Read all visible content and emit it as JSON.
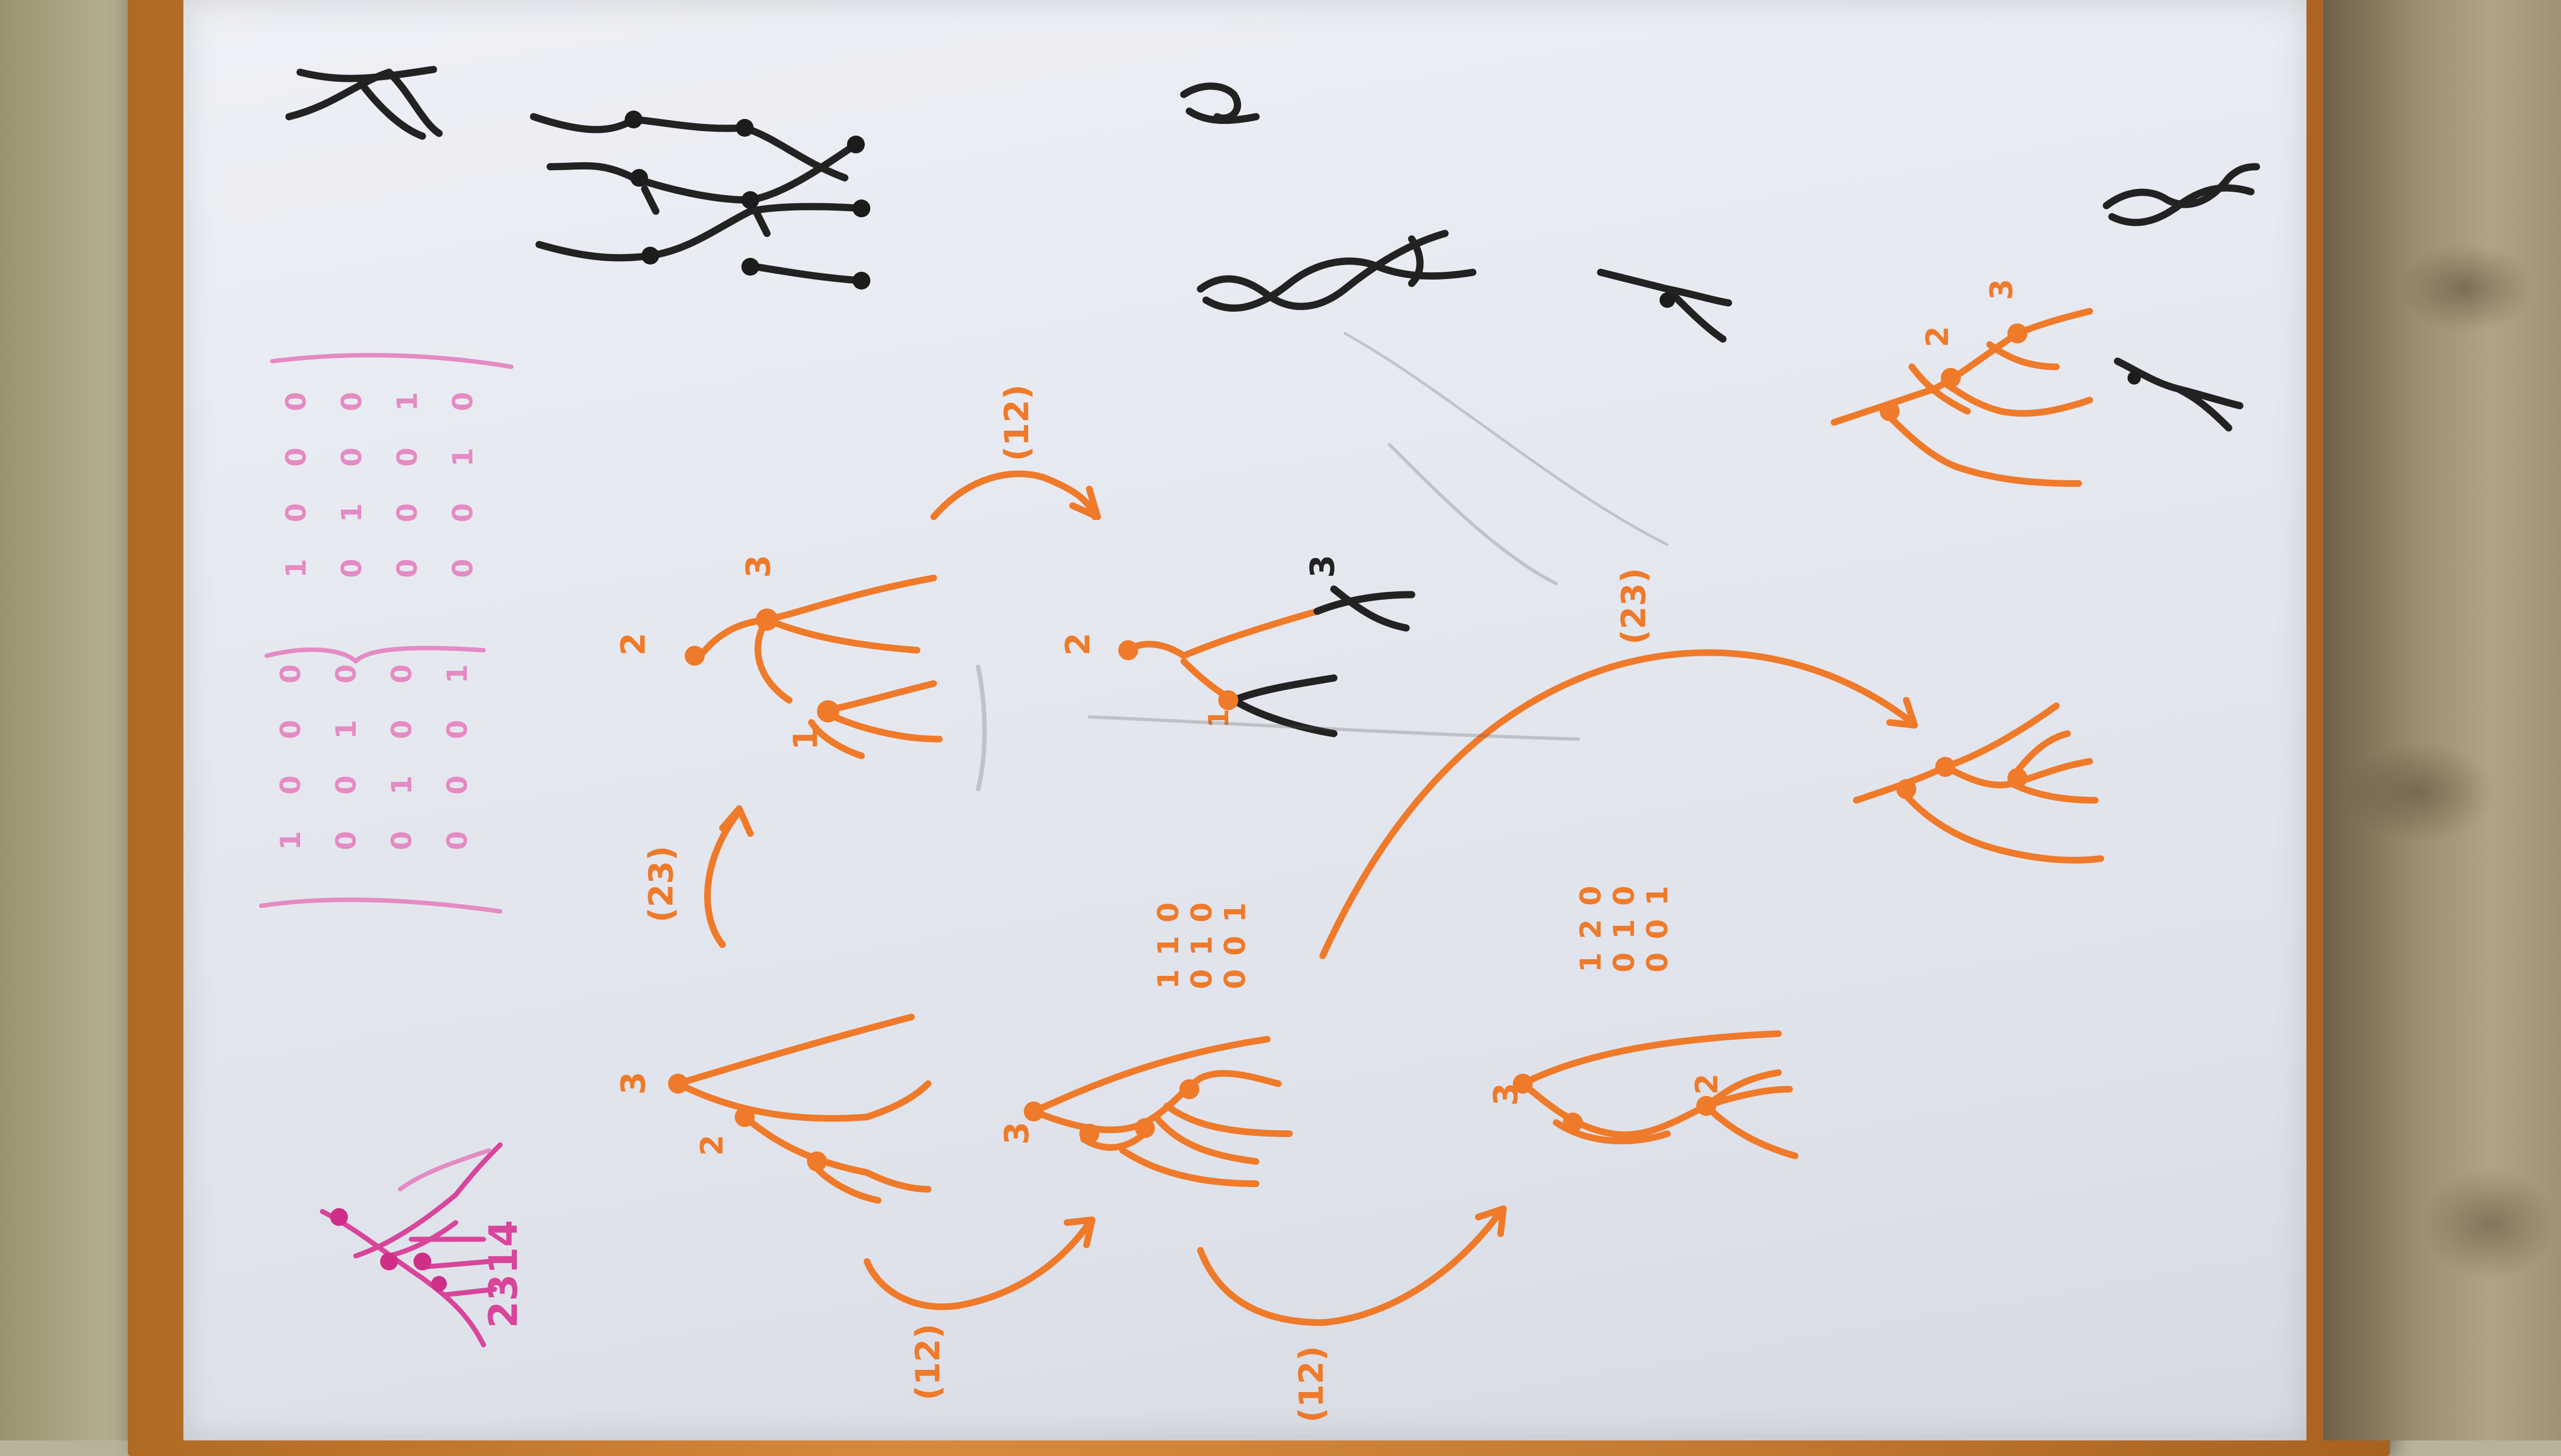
{
  "colors": {
    "board": "#e6e8f0",
    "frame": "#c27a32",
    "orange_marker": "#ef7a2a",
    "magenta_marker": "#d8459a",
    "black_marker": "#222222"
  },
  "labels": {
    "perm_12_top": "(12)",
    "perm_23_left": "(23)",
    "perm_12_bottom_left": "(12)",
    "perm_12_bottom_mid": "(12)",
    "perm_23_right": "(23)",
    "num_1": "1",
    "num_2": "2",
    "num_3": "3",
    "sequence_2314": "2314"
  },
  "matrix_left": {
    "rows": [
      [
        "1",
        "0",
        "0",
        "0"
      ],
      [
        "0",
        "0",
        "1",
        "0"
      ],
      [
        "0",
        "1",
        "0",
        "0"
      ],
      [
        "0",
        "0",
        "0",
        "1"
      ]
    ]
  },
  "matrix_right": {
    "rows": [
      [
        "1",
        "0",
        "0",
        "0"
      ],
      [
        "0",
        "1",
        "0",
        "0"
      ],
      [
        "0",
        "0",
        "0",
        "1"
      ],
      [
        "0",
        "0",
        "1",
        "0"
      ]
    ]
  },
  "matrix_small_a": {
    "rows": [
      [
        "1",
        "1",
        "0"
      ],
      [
        "0",
        "1",
        "0"
      ],
      [
        "0",
        "0",
        "1"
      ]
    ]
  },
  "matrix_small_b": {
    "rows": [
      [
        "1",
        "2",
        "0"
      ],
      [
        "0",
        "1",
        "0"
      ],
      [
        "0",
        "0",
        "1"
      ]
    ]
  }
}
